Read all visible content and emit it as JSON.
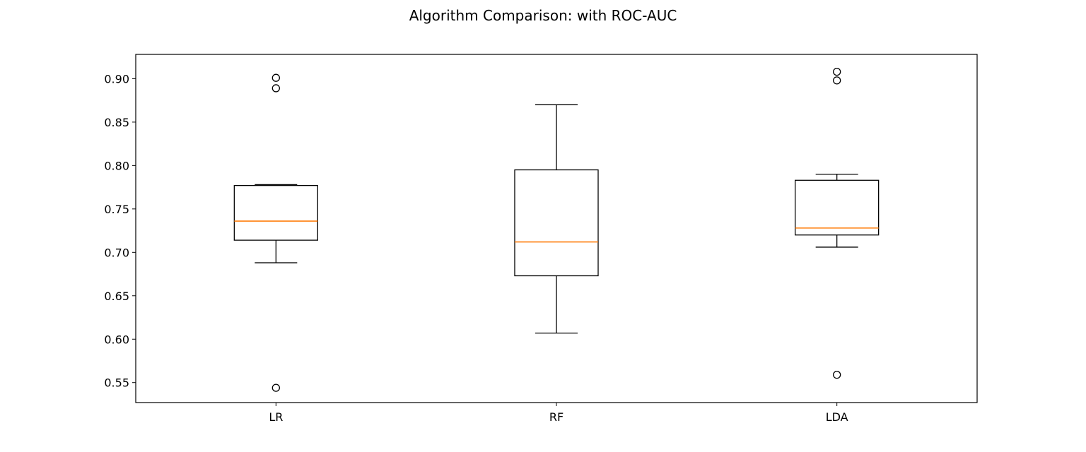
{
  "chart_data": {
    "type": "box",
    "title": "Algorithm Comparison: with ROC-AUC",
    "xlabel": "",
    "ylabel": "",
    "categories": [
      "LR",
      "RF",
      "LDA"
    ],
    "ylim": [
      0.527,
      0.928
    ],
    "yticks": [
      0.55,
      0.6,
      0.65,
      0.7,
      0.75,
      0.8,
      0.85,
      0.9
    ],
    "ytick_labels": [
      "0.55",
      "0.60",
      "0.65",
      "0.70",
      "0.75",
      "0.80",
      "0.85",
      "0.90"
    ],
    "grid": false,
    "boxes": [
      {
        "label": "LR",
        "whisker_low": 0.688,
        "q1": 0.714,
        "median": 0.736,
        "q3": 0.777,
        "whisker_high": 0.778,
        "outliers": [
          0.901,
          0.889,
          0.544
        ]
      },
      {
        "label": "RF",
        "whisker_low": 0.607,
        "q1": 0.673,
        "median": 0.712,
        "q3": 0.795,
        "whisker_high": 0.87,
        "outliers": []
      },
      {
        "label": "LDA",
        "whisker_low": 0.706,
        "q1": 0.72,
        "median": 0.728,
        "q3": 0.783,
        "whisker_high": 0.79,
        "outliers": [
          0.908,
          0.898,
          0.559
        ]
      }
    ],
    "colors": {
      "box": "#000000",
      "median": "#ff7f0e",
      "outlier": "#000000",
      "axes": "#000000"
    }
  }
}
